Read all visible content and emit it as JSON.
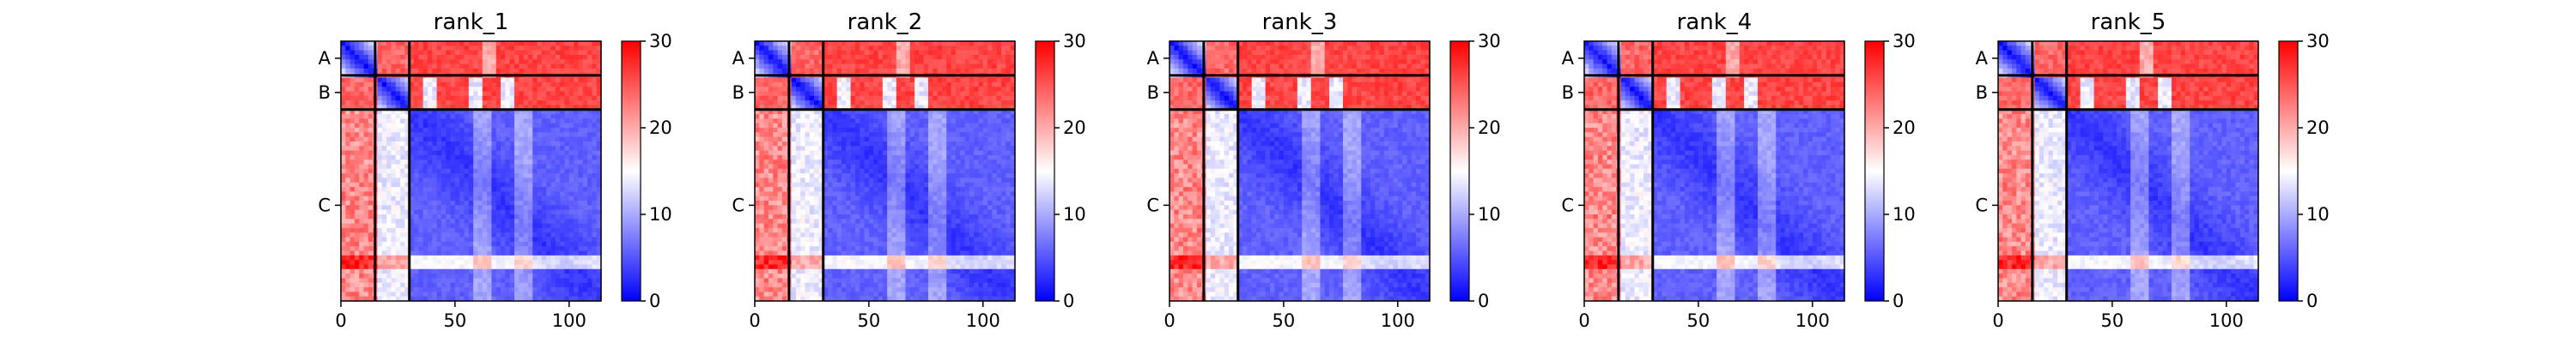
{
  "chart_data": {
    "type": "heatmap",
    "colormap": {
      "name": "bwr",
      "low": "#0000ff",
      "mid": "#ffffff",
      "high": "#ff0000"
    },
    "clim": [
      0,
      30
    ],
    "colorbar_ticks": [
      0,
      10,
      20,
      30
    ],
    "x_ticks": [
      0,
      50,
      100
    ],
    "xlim": [
      0,
      114
    ],
    "chains": [
      {
        "label": "A",
        "start": 0,
        "end": 15
      },
      {
        "label": "B",
        "start": 15,
        "end": 30
      },
      {
        "label": "C",
        "start": 30,
        "end": 114
      }
    ],
    "panels": [
      {
        "title": "rank_1"
      },
      {
        "title": "rank_2"
      },
      {
        "title": "rank_3"
      },
      {
        "title": "rank_4"
      },
      {
        "title": "rank_5"
      }
    ],
    "grid": false
  }
}
